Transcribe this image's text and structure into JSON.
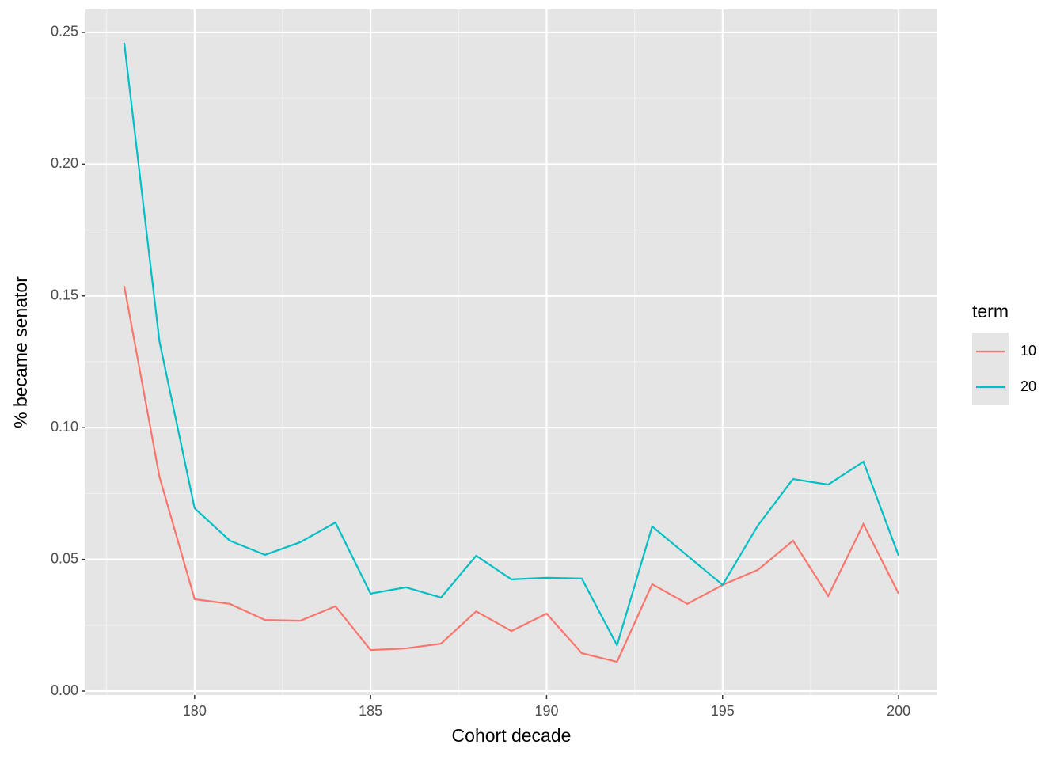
{
  "chart_data": {
    "type": "line",
    "x_label": "Cohort decade",
    "y_label": "% became senator",
    "x": [
      178,
      179,
      180,
      181,
      182,
      183,
      184,
      185,
      186,
      187,
      188,
      189,
      190,
      191,
      192,
      193,
      194,
      195,
      196,
      197,
      198,
      199,
      200
    ],
    "series": [
      {
        "name": "10",
        "color": "#F8766D",
        "values": [
          0.1538,
          0.0814,
          0.0349,
          0.0331,
          0.027,
          0.0267,
          0.0322,
          0.0156,
          0.0162,
          0.018,
          0.0303,
          0.0228,
          0.0294,
          0.0144,
          0.0111,
          0.0406,
          0.0331,
          0.0403,
          0.046,
          0.0571,
          0.0361,
          0.0634,
          0.037
        ]
      },
      {
        "name": "20",
        "color": "#00BFC4",
        "values": [
          0.2461,
          0.1328,
          0.0694,
          0.0571,
          0.0517,
          0.0565,
          0.064,
          0.037,
          0.0394,
          0.0355,
          0.0514,
          0.0424,
          0.043,
          0.0427,
          0.0174,
          0.0625,
          0.0514,
          0.0403,
          0.0628,
          0.0805,
          0.0784,
          0.0871,
          0.0514
        ]
      }
    ],
    "legend_title": "term",
    "legend": "right",
    "xlim": [
      176.9,
      201.1
    ],
    "xticks": [
      180,
      185,
      190,
      195,
      200
    ],
    "x_minor_ticks": [
      177.5,
      182.5,
      187.5,
      192.5,
      197.5
    ],
    "ylim": [
      -0.0015,
      0.2587
    ],
    "yticks": [
      {
        "value": 0,
        "label": "0.00"
      },
      {
        "value": 0.05,
        "label": "0.05"
      },
      {
        "value": 0.1,
        "label": "0.10"
      },
      {
        "value": 0.15,
        "label": "0.15"
      },
      {
        "value": 0.2,
        "label": "0.20"
      },
      {
        "value": 0.25,
        "label": "0.25"
      }
    ],
    "y_minor_ticks": [
      0.025,
      0.075,
      0.125,
      0.175,
      0.225
    ],
    "grid": true
  }
}
